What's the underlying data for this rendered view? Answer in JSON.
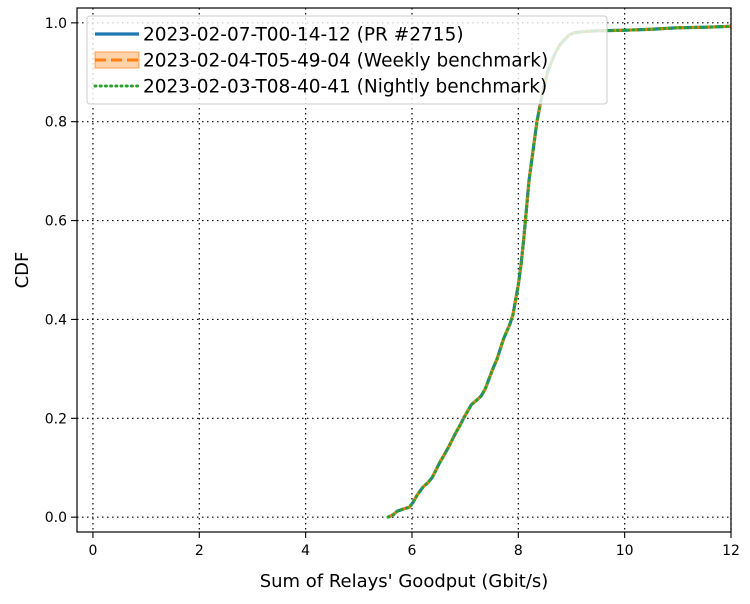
{
  "chart_data": {
    "type": "line",
    "xlabel": "Sum of Relays' Goodput (Gbit/s)",
    "ylabel": "CDF",
    "xlim": [
      -0.3,
      12
    ],
    "ylim": [
      -0.03,
      1.03
    ],
    "xticks": [
      0,
      2,
      4,
      6,
      8,
      10,
      12
    ],
    "yticks": [
      0.0,
      0.2,
      0.4,
      0.6,
      0.8,
      1.0
    ],
    "xtick_labels": [
      "0",
      "2",
      "4",
      "6",
      "8",
      "10",
      "12"
    ],
    "ytick_labels": [
      "0.0",
      "0.2",
      "0.4",
      "0.6",
      "0.8",
      "1.0"
    ],
    "grid": true,
    "grid_style": "dotted",
    "legend_position": "top-left",
    "series": [
      {
        "name": "2023-02-07-T00-14-12 (PR #2715)",
        "color": "#1f77b4",
        "style": "solid",
        "x": [
          5.55,
          5.65,
          5.72,
          5.8,
          5.88,
          5.95,
          6.02,
          6.1,
          6.2,
          6.3,
          6.38,
          6.45,
          6.52,
          6.6,
          6.68,
          6.75,
          6.82,
          6.9,
          6.97,
          7.05,
          7.12,
          7.2,
          7.3,
          7.38,
          7.45,
          7.52,
          7.6,
          7.66,
          7.72,
          7.78,
          7.84,
          7.9,
          7.95,
          8.0,
          8.05,
          8.1,
          8.15,
          8.2,
          8.25,
          8.3,
          8.35,
          8.42,
          8.48,
          8.55,
          8.62,
          8.7,
          8.78,
          8.86,
          8.95,
          9.05,
          9.2,
          9.5,
          10.0,
          10.5,
          11.0,
          11.5,
          12.0
        ],
        "y": [
          0.0,
          0.005,
          0.012,
          0.015,
          0.018,
          0.02,
          0.03,
          0.045,
          0.06,
          0.07,
          0.08,
          0.095,
          0.11,
          0.125,
          0.14,
          0.155,
          0.17,
          0.185,
          0.2,
          0.215,
          0.228,
          0.235,
          0.245,
          0.26,
          0.28,
          0.3,
          0.32,
          0.34,
          0.36,
          0.375,
          0.39,
          0.41,
          0.44,
          0.47,
          0.51,
          0.56,
          0.62,
          0.68,
          0.72,
          0.76,
          0.8,
          0.84,
          0.87,
          0.9,
          0.92,
          0.94,
          0.955,
          0.965,
          0.975,
          0.98,
          0.982,
          0.984,
          0.985,
          0.987,
          0.99,
          0.991,
          0.993
        ]
      },
      {
        "name": "2023-02-04-T05-49-04 (Weekly benchmark)",
        "color": "#ff7f0e",
        "style": "dashed",
        "x": [
          5.55,
          5.65,
          5.72,
          5.8,
          5.88,
          5.95,
          6.02,
          6.1,
          6.2,
          6.3,
          6.38,
          6.45,
          6.52,
          6.6,
          6.68,
          6.75,
          6.82,
          6.9,
          6.97,
          7.05,
          7.12,
          7.2,
          7.3,
          7.38,
          7.45,
          7.52,
          7.6,
          7.66,
          7.72,
          7.78,
          7.84,
          7.9,
          7.95,
          8.0,
          8.05,
          8.1,
          8.15,
          8.2,
          8.25,
          8.3,
          8.35,
          8.42,
          8.48,
          8.55,
          8.62,
          8.7,
          8.78,
          8.86,
          8.95,
          9.05,
          9.2,
          9.5,
          10.0,
          10.5,
          11.0,
          11.5,
          12.0
        ],
        "y": [
          0.0,
          0.005,
          0.012,
          0.015,
          0.018,
          0.02,
          0.03,
          0.045,
          0.06,
          0.07,
          0.08,
          0.095,
          0.11,
          0.125,
          0.14,
          0.155,
          0.17,
          0.185,
          0.2,
          0.215,
          0.228,
          0.235,
          0.245,
          0.26,
          0.28,
          0.3,
          0.32,
          0.34,
          0.36,
          0.375,
          0.39,
          0.41,
          0.44,
          0.47,
          0.51,
          0.56,
          0.62,
          0.68,
          0.72,
          0.76,
          0.8,
          0.84,
          0.87,
          0.9,
          0.92,
          0.94,
          0.955,
          0.965,
          0.975,
          0.98,
          0.982,
          0.984,
          0.985,
          0.987,
          0.99,
          0.991,
          0.993
        ]
      },
      {
        "name": "2023-02-03-T08-40-41 (Nightly benchmark)",
        "color": "#2ca02c",
        "style": "dotted",
        "x": [
          5.55,
          5.65,
          5.72,
          5.8,
          5.88,
          5.95,
          6.02,
          6.1,
          6.2,
          6.3,
          6.38,
          6.45,
          6.52,
          6.6,
          6.68,
          6.75,
          6.82,
          6.9,
          6.97,
          7.05,
          7.12,
          7.2,
          7.3,
          7.38,
          7.45,
          7.52,
          7.6,
          7.66,
          7.72,
          7.78,
          7.84,
          7.9,
          7.95,
          8.0,
          8.05,
          8.1,
          8.15,
          8.2,
          8.25,
          8.3,
          8.35,
          8.42,
          8.48,
          8.55,
          8.62,
          8.7,
          8.78,
          8.86,
          8.95,
          9.05,
          9.2,
          9.5,
          10.0,
          10.5,
          11.0,
          11.5,
          12.0
        ],
        "y": [
          0.0,
          0.005,
          0.012,
          0.015,
          0.018,
          0.02,
          0.03,
          0.045,
          0.06,
          0.07,
          0.08,
          0.095,
          0.11,
          0.125,
          0.14,
          0.155,
          0.17,
          0.185,
          0.2,
          0.215,
          0.228,
          0.235,
          0.245,
          0.26,
          0.28,
          0.3,
          0.32,
          0.34,
          0.36,
          0.375,
          0.39,
          0.41,
          0.44,
          0.47,
          0.51,
          0.56,
          0.62,
          0.68,
          0.72,
          0.76,
          0.8,
          0.84,
          0.87,
          0.9,
          0.92,
          0.94,
          0.955,
          0.965,
          0.975,
          0.98,
          0.982,
          0.984,
          0.985,
          0.987,
          0.99,
          0.991,
          0.993
        ]
      }
    ]
  }
}
